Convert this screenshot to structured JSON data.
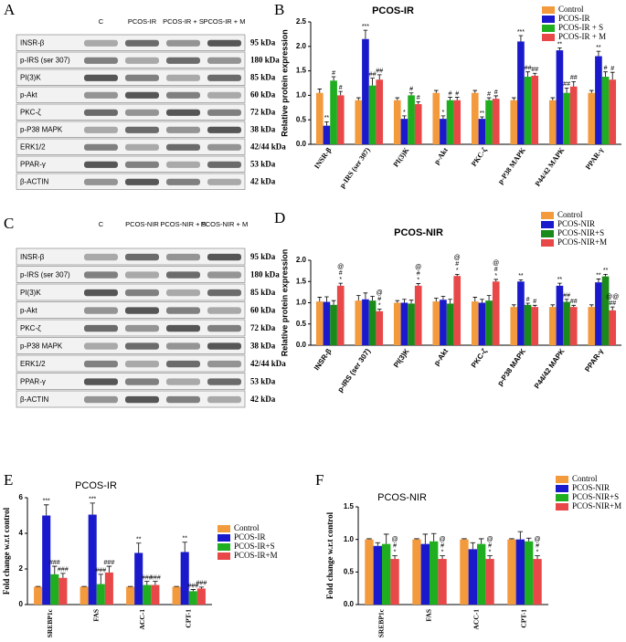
{
  "panel_letters": [
    "A",
    "B",
    "C",
    "D",
    "E",
    "F"
  ],
  "blots": [
    {
      "lanes": [
        "C",
        "PCOS-IR",
        "PCOS-IR + S",
        "PCOS-IR + M"
      ],
      "rows": [
        {
          "protein": "INSR-β",
          "kda": "95 kDa"
        },
        {
          "protein": "p-IRS (ser 307)",
          "kda": "180 kDa"
        },
        {
          "protein": "PI(3)K",
          "kda": "85 kDa"
        },
        {
          "protein": "p-Akt",
          "kda": "60 kDa"
        },
        {
          "protein": "PKC-ζ",
          "kda": "72 kDa"
        },
        {
          "protein": "p-P38 MAPK",
          "kda": "38 kDa"
        },
        {
          "protein": "ERK1/2",
          "kda": "42/44 kDa"
        },
        {
          "protein": "PPAR-γ",
          "kda": "53 kDa"
        },
        {
          "protein": "β-ACTIN",
          "kda": "42 kDa"
        }
      ]
    },
    {
      "lanes": [
        "C",
        "PCOS-NIR",
        "PCOS-NIR + S",
        "PCOS-NIR + M"
      ],
      "rows": [
        {
          "protein": "INSR-β",
          "kda": "95 kDa"
        },
        {
          "protein": "p-IRS (ser 307)",
          "kda": "180 kDa"
        },
        {
          "protein": "PI(3)K",
          "kda": "85 kDa"
        },
        {
          "protein": "p-Akt",
          "kda": "60 kDa"
        },
        {
          "protein": "PKC-ζ",
          "kda": "72 kDa"
        },
        {
          "protein": "p-P38 MAPK",
          "kda": "38 kDa"
        },
        {
          "protein": "ERK1/2",
          "kda": "42/44 kDa"
        },
        {
          "protein": "PPAR-γ",
          "kda": "53 kDa"
        },
        {
          "protein": "β-ACTIN",
          "kda": "42 kDa"
        }
      ]
    }
  ],
  "chart_data": [
    {
      "type": "bar",
      "title": "PCOS-IR",
      "y_label": "Relative protein expression",
      "legend": "upper right",
      "categories": [
        "INSR-β",
        "p-IRS (ser 307)",
        "PI(3)K",
        "p-Akt",
        "PKC-ζ",
        "p-P38 MAPK",
        "P44/42 MAPK",
        "PPAR-γ"
      ],
      "ylim": [
        0,
        2.5
      ],
      "yticks": [
        {
          "value": 0,
          "label": "0.0"
        },
        0.5,
        {
          "value": 1,
          "label": "1.0"
        },
        1.5,
        {
          "value": 2,
          "label": "2.0"
        },
        2.5
      ],
      "series": [
        {
          "name": "Control",
          "color": "#f39a3c",
          "values": [
            1.05,
            0.9,
            0.9,
            1.05,
            1.05,
            0.9,
            0.9,
            1.05
          ],
          "errors": [
            0.08,
            0.05,
            0.05,
            0.05,
            0.05,
            0.05,
            0.05,
            0.05
          ],
          "sig": [
            null,
            null,
            null,
            null,
            null,
            null,
            null,
            null
          ]
        },
        {
          "name": "PCOS-IR",
          "color": "#1a1acc",
          "values": [
            0.38,
            2.15,
            0.52,
            0.52,
            0.52,
            2.1,
            1.92,
            1.8
          ],
          "errors": [
            0.08,
            0.18,
            0.06,
            0.06,
            0.04,
            0.12,
            0.05,
            0.1
          ],
          "sig": [
            [
              "**"
            ],
            [
              "***"
            ],
            [
              "*"
            ],
            [
              "*"
            ],
            [
              "**"
            ],
            [
              "***"
            ],
            [
              "**"
            ],
            [
              "**"
            ]
          ]
        },
        {
          "name": "PCOS-IR + S",
          "color": "#1fae1f",
          "values": [
            1.3,
            1.2,
            1.0,
            0.9,
            0.9,
            1.38,
            1.05,
            1.38
          ],
          "errors": [
            0.08,
            0.15,
            0.05,
            0.06,
            0.05,
            0.1,
            0.1,
            0.1
          ],
          "sig": [
            [
              "#"
            ],
            [
              "##"
            ],
            [
              "#"
            ],
            [
              "#"
            ],
            [
              "#"
            ],
            [
              "##"
            ],
            [
              "##"
            ],
            [
              "#"
            ]
          ]
        },
        {
          "name": "PCOS-IR + M",
          "color": "#e84848",
          "values": [
            1.0,
            1.32,
            0.82,
            0.9,
            0.93,
            1.4,
            1.18,
            1.32
          ],
          "errors": [
            0.08,
            0.1,
            0.05,
            0.06,
            0.06,
            0.05,
            0.1,
            0.15
          ],
          "sig": [
            [
              "#"
            ],
            [
              "##"
            ],
            [
              "#"
            ],
            [
              "#"
            ],
            [
              "#"
            ],
            [
              "##"
            ],
            [
              "##"
            ],
            [
              "#"
            ]
          ]
        }
      ]
    },
    {
      "type": "bar",
      "title": "PCOS-NIR",
      "y_label": "Relative protein expression",
      "legend": "upper right",
      "categories": [
        "INSR-β",
        "p-IRS (ser 307)",
        "PI(3)K",
        "p-Akt",
        "PKC-ζ",
        "p-P38 MAPK",
        "P44/42 MAPK",
        "PPAR-γ"
      ],
      "ylim": [
        0,
        2.0
      ],
      "yticks": [
        {
          "value": 0,
          "label": "0.0"
        },
        0.5,
        {
          "value": 1,
          "label": "1.0"
        },
        1.5,
        {
          "value": 2,
          "label": "2.0"
        }
      ],
      "series": [
        {
          "name": "Control",
          "color": "#f39a3c",
          "values": [
            1.03,
            1.05,
            1.0,
            1.03,
            1.03,
            0.9,
            0.9,
            0.9
          ],
          "errors": [
            0.1,
            0.12,
            0.05,
            0.08,
            0.1,
            0.05,
            0.05,
            0.05
          ],
          "sig": [
            null,
            null,
            null,
            null,
            null,
            null,
            null,
            null
          ]
        },
        {
          "name": "PCOS-NIR",
          "color": "#1a1acc",
          "values": [
            1.02,
            1.08,
            1.0,
            1.07,
            1.0,
            1.5,
            1.4,
            1.48
          ],
          "errors": [
            0.12,
            0.15,
            0.08,
            0.08,
            0.08,
            0.04,
            0.06,
            0.08
          ],
          "sig": [
            null,
            null,
            null,
            null,
            null,
            [
              "**"
            ],
            [
              "**"
            ],
            [
              "**"
            ]
          ]
        },
        {
          "name": "PCOS-NIR+S",
          "color": "#1a8a1a",
          "values": [
            0.95,
            1.05,
            0.98,
            0.98,
            1.05,
            0.95,
            1.02,
            1.62
          ],
          "errors": [
            0.1,
            0.1,
            0.08,
            0.1,
            0.12,
            0.04,
            0.06,
            0.05
          ],
          "sig": [
            null,
            null,
            null,
            null,
            null,
            [
              "#"
            ],
            [
              "##"
            ],
            [
              "**"
            ]
          ]
        },
        {
          "name": "PCOS-NIR+M",
          "color": "#e84848",
          "values": [
            1.4,
            0.8,
            1.4,
            1.63,
            1.5,
            0.9,
            0.9,
            0.82
          ],
          "errors": [
            0.06,
            0.05,
            0.05,
            0.04,
            0.05,
            0.04,
            0.04,
            0.08
          ],
          "sig": [
            [
              "@",
              "#",
              "*"
            ],
            [
              "@",
              "#",
              "*"
            ],
            [
              "@",
              "#",
              "*"
            ],
            [
              "@",
              "#",
              "*"
            ],
            [
              "@",
              "#",
              "*"
            ],
            [
              "#"
            ],
            [
              "##"
            ],
            [
              "@@",
              "##"
            ]
          ]
        }
      ]
    },
    {
      "type": "bar",
      "title": "PCOS-IR",
      "y_label": "Fold change w.r.t control",
      "legend": "right",
      "categories": [
        "SREBP1c",
        "FAS",
        "ACC-1",
        "CPT-1"
      ],
      "ylim": [
        0,
        6
      ],
      "yticks": [
        0,
        2,
        4,
        6
      ],
      "series": [
        {
          "name": "Control",
          "color": "#f39a3c",
          "values": [
            1.0,
            1.0,
            1.0,
            1.0
          ],
          "errors": [
            0.02,
            0.02,
            0.02,
            0.02
          ],
          "sig": [
            null,
            null,
            null,
            null
          ]
        },
        {
          "name": "PCOS-IR",
          "color": "#1a1acc",
          "values": [
            5.0,
            5.05,
            2.9,
            2.95
          ],
          "errors": [
            0.6,
            0.65,
            0.55,
            0.55
          ],
          "sig": [
            [
              "***"
            ],
            [
              "***"
            ],
            [
              "**"
            ],
            [
              "**"
            ]
          ]
        },
        {
          "name": "PCOS-IR+S",
          "color": "#1fae1f",
          "values": [
            1.7,
            1.15,
            1.1,
            0.75
          ],
          "errors": [
            0.45,
            0.55,
            0.2,
            0.1
          ],
          "sig": [
            [
              "###"
            ],
            [
              "###"
            ],
            [
              "###"
            ],
            [
              "###"
            ]
          ]
        },
        {
          "name": "PCOS-IR+M",
          "color": "#e84848",
          "values": [
            1.5,
            1.8,
            1.1,
            0.9
          ],
          "errors": [
            0.25,
            0.35,
            0.2,
            0.08
          ],
          "sig": [
            [
              "###"
            ],
            [
              "###"
            ],
            [
              "###"
            ],
            [
              "###"
            ]
          ]
        }
      ]
    },
    {
      "type": "bar",
      "title": "PCOS-NIR",
      "y_label": "Fold change w.r.t control",
      "legend": "upper right",
      "categories": [
        "SREBP1c",
        "FAS",
        "ACC-1",
        "CPT-1"
      ],
      "ylim": [
        0,
        1.5
      ],
      "yticks": [
        {
          "value": 0,
          "label": "0.0"
        },
        0.5,
        {
          "value": 1,
          "label": "1.0"
        },
        1.5
      ],
      "series": [
        {
          "name": "Control",
          "color": "#f39a3c",
          "values": [
            1.0,
            1.0,
            1.0,
            1.0
          ],
          "errors": [
            0.01,
            0.01,
            0.01,
            0.01
          ],
          "sig": [
            null,
            null,
            null,
            null
          ]
        },
        {
          "name": "PCOS-NIR",
          "color": "#1a1acc",
          "values": [
            0.9,
            0.93,
            0.85,
            1.0
          ],
          "errors": [
            0.05,
            0.15,
            0.1,
            0.12
          ],
          "sig": [
            null,
            null,
            null,
            null
          ]
        },
        {
          "name": "PCOS-NIR+S",
          "color": "#1fae1f",
          "values": [
            0.93,
            0.97,
            0.93,
            0.97
          ],
          "errors": [
            0.15,
            0.12,
            0.08,
            0.05
          ],
          "sig": [
            null,
            null,
            null,
            null
          ]
        },
        {
          "name": "PCOS-NIR+M",
          "color": "#e84848",
          "values": [
            0.7,
            0.7,
            0.7,
            0.7
          ],
          "errors": [
            0.05,
            0.05,
            0.05,
            0.05
          ],
          "sig": [
            [
              "@",
              "#",
              "*"
            ],
            [
              "@",
              "#",
              "*"
            ],
            [
              "@",
              "#",
              "*"
            ],
            [
              "@",
              "#",
              "*"
            ]
          ]
        }
      ]
    }
  ]
}
